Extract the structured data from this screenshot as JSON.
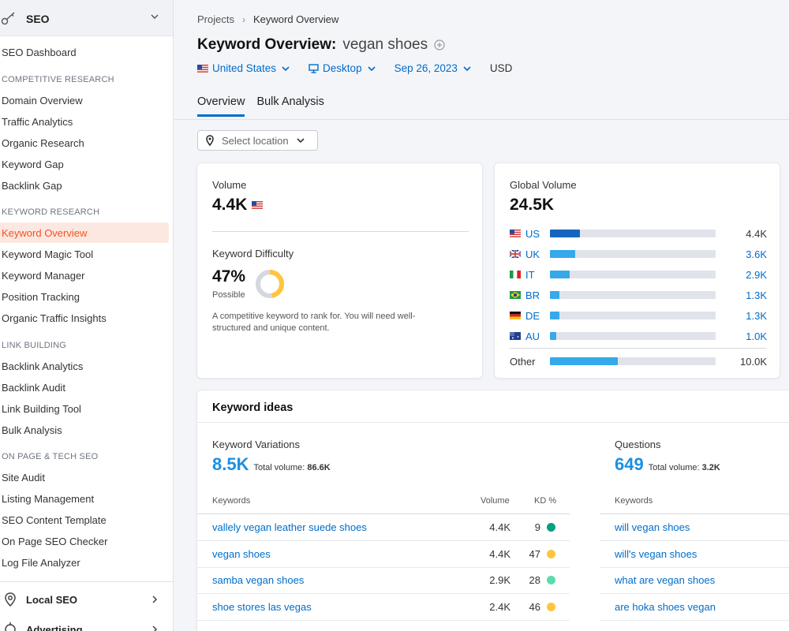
{
  "sidebar": {
    "header": {
      "label": "SEO"
    },
    "dashboard": "SEO Dashboard",
    "sections": [
      {
        "title": "COMPETITIVE RESEARCH",
        "items": [
          "Domain Overview",
          "Traffic Analytics",
          "Organic Research",
          "Keyword Gap",
          "Backlink Gap"
        ]
      },
      {
        "title": "KEYWORD RESEARCH",
        "items": [
          "Keyword Overview",
          "Keyword Magic Tool",
          "Keyword Manager",
          "Position Tracking",
          "Organic Traffic Insights"
        ]
      },
      {
        "title": "LINK BUILDING",
        "items": [
          "Backlink Analytics",
          "Backlink Audit",
          "Link Building Tool",
          "Bulk Analysis"
        ]
      },
      {
        "title": "ON PAGE & TECH SEO",
        "items": [
          "Site Audit",
          "Listing Management",
          "SEO Content Template",
          "On Page SEO Checker",
          "Log File Analyzer"
        ]
      }
    ],
    "active_item": "Keyword Overview",
    "groups": [
      {
        "label": "Local SEO"
      },
      {
        "label": "Advertising"
      }
    ]
  },
  "breadcrumb": {
    "root": "Projects",
    "current": "Keyword Overview"
  },
  "title": {
    "main": "Keyword Overview:",
    "keyword": "vegan shoes"
  },
  "filters": {
    "country": "United States",
    "device": "Desktop",
    "date": "Sep 26, 2023",
    "currency": "USD"
  },
  "tabs": [
    "Overview",
    "Bulk Analysis"
  ],
  "location_select": {
    "placeholder": "Select location"
  },
  "volume_card": {
    "volume_label": "Volume",
    "volume_value": "4.4K",
    "kd_label": "Keyword Difficulty",
    "kd_value": "47%",
    "kd_percent": 47,
    "kd_status": "Possible",
    "kd_description": "A competitive keyword to rank for. You will need well-structured and unique content."
  },
  "global_card": {
    "label": "Global Volume",
    "value": "24.5K",
    "rows": [
      {
        "code": "US",
        "value": "4.4K",
        "share": 0.18,
        "color": "#1565c0"
      },
      {
        "code": "UK",
        "value": "3.6K",
        "share": 0.15,
        "color": "#35a9ea"
      },
      {
        "code": "IT",
        "value": "2.9K",
        "share": 0.12,
        "color": "#35a9ea"
      },
      {
        "code": "BR",
        "value": "1.3K",
        "share": 0.055,
        "color": "#35a9ea"
      },
      {
        "code": "DE",
        "value": "1.3K",
        "share": 0.055,
        "color": "#35a9ea"
      },
      {
        "code": "AU",
        "value": "1.0K",
        "share": 0.04,
        "color": "#35a9ea"
      }
    ],
    "other": {
      "code": "Other",
      "value": "10.0K",
      "share": 0.41,
      "color": "#35a9ea"
    }
  },
  "ideas": {
    "title": "Keyword ideas",
    "variations": {
      "title": "Keyword Variations",
      "count": "8.5K",
      "total_label": "Total volume:",
      "total_value": "86.6K",
      "headers": {
        "keywords": "Keywords",
        "volume": "Volume",
        "kd": "KD %"
      },
      "rows": [
        {
          "keyword": "vallely vegan leather suede shoes",
          "volume": "4.4K",
          "kd": "9",
          "kd_color": "#009f81"
        },
        {
          "keyword": "vegan shoes",
          "volume": "4.4K",
          "kd": "47",
          "kd_color": "#ffc53d"
        },
        {
          "keyword": "samba vegan shoes",
          "volume": "2.9K",
          "kd": "28",
          "kd_color": "#59ddaa"
        },
        {
          "keyword": "shoe stores las vegas",
          "volume": "2.4K",
          "kd": "46",
          "kd_color": "#ffc53d"
        }
      ]
    },
    "questions": {
      "title": "Questions",
      "count": "649",
      "total_label": "Total volume:",
      "total_value": "3.2K",
      "headers": {
        "keywords": "Keywords"
      },
      "rows": [
        {
          "keyword": "will vegan shoes"
        },
        {
          "keyword": "will's vegan shoes"
        },
        {
          "keyword": "what are vegan shoes"
        },
        {
          "keyword": "are hoka shoes vegan"
        }
      ]
    }
  }
}
